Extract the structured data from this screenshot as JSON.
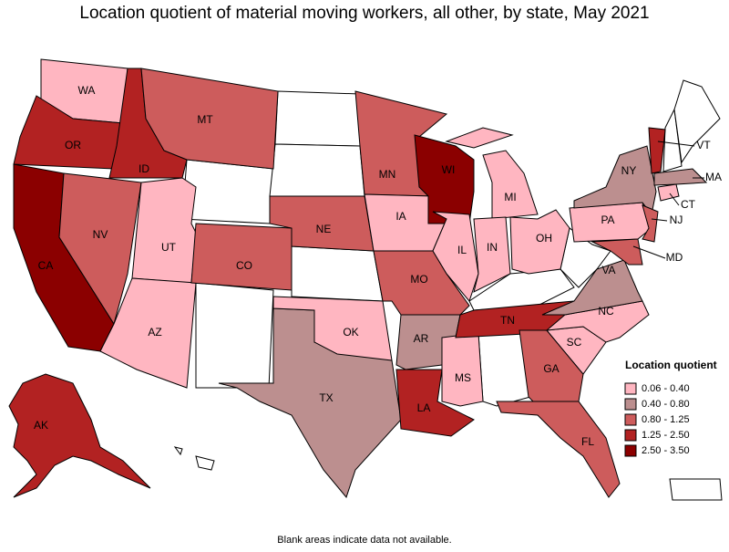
{
  "title": "Location quotient of material moving workers, all other, by state, May 2021",
  "footnote": "Blank areas indicate data not available.",
  "legend": {
    "title": "Location quotient",
    "items": [
      {
        "label": "0.06 - 0.40",
        "color": "#ffb6c1"
      },
      {
        "label": "0.40 - 0.80",
        "color": "#bc8f8f"
      },
      {
        "label": "0.80 - 1.25",
        "color": "#cd5c5c"
      },
      {
        "label": "1.25 - 2.50",
        "color": "#b22222"
      },
      {
        "label": "2.50 - 3.50",
        "color": "#8b0000"
      }
    ]
  },
  "states": [
    {
      "abbr": "WA",
      "legend_item": 0
    },
    {
      "abbr": "OR",
      "legend_item": 3
    },
    {
      "abbr": "CA",
      "legend_item": 4
    },
    {
      "abbr": "ID",
      "legend_item": 3
    },
    {
      "abbr": "NV",
      "legend_item": 2
    },
    {
      "abbr": "UT",
      "legend_item": 0
    },
    {
      "abbr": "AZ",
      "legend_item": 0
    },
    {
      "abbr": "MT",
      "legend_item": 2
    },
    {
      "abbr": "CO",
      "legend_item": 2
    },
    {
      "abbr": "NE",
      "legend_item": 2
    },
    {
      "abbr": "MN",
      "legend_item": 2
    },
    {
      "abbr": "IA",
      "legend_item": 0
    },
    {
      "abbr": "MO",
      "legend_item": 2
    },
    {
      "abbr": "WI",
      "legend_item": 4
    },
    {
      "abbr": "IL",
      "legend_item": 0
    },
    {
      "abbr": "MI",
      "legend_item": 0
    },
    {
      "abbr": "IN",
      "legend_item": 0
    },
    {
      "abbr": "OH",
      "legend_item": 0
    },
    {
      "abbr": "TX",
      "legend_item": 1
    },
    {
      "abbr": "OK",
      "legend_item": 0
    },
    {
      "abbr": "AR",
      "legend_item": 1
    },
    {
      "abbr": "LA",
      "legend_item": 3
    },
    {
      "abbr": "MS",
      "legend_item": 0
    },
    {
      "abbr": "TN",
      "legend_item": 3
    },
    {
      "abbr": "GA",
      "legend_item": 2
    },
    {
      "abbr": "FL",
      "legend_item": 2
    },
    {
      "abbr": "SC",
      "legend_item": 0
    },
    {
      "abbr": "NC",
      "legend_item": 0
    },
    {
      "abbr": "VA",
      "legend_item": 1
    },
    {
      "abbr": "PA",
      "legend_item": 0
    },
    {
      "abbr": "NY",
      "legend_item": 1
    },
    {
      "abbr": "VT",
      "legend_item": 3
    },
    {
      "abbr": "MA",
      "legend_item": 1
    },
    {
      "abbr": "CT",
      "legend_item": 0
    },
    {
      "abbr": "NJ",
      "legend_item": 2
    },
    {
      "abbr": "MD",
      "legend_item": 2
    },
    {
      "abbr": "AK",
      "legend_item": 3
    }
  ]
}
